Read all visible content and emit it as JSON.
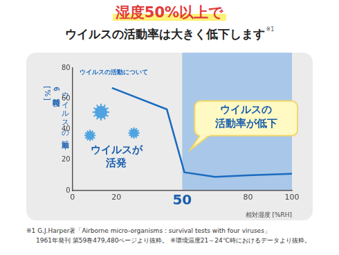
{
  "chart_data": {
    "type": "line",
    "title": "湿度50%以上で",
    "subtitle": "ウイルスの活動率は大きく低下します",
    "subtitle_mark": "※1",
    "x_label": "相対湿度 [%RH]",
    "y_label": [
      "ウイルスの活動率",
      "（6時間後）",
      "[%]"
    ],
    "x": [
      18,
      43,
      51,
      65,
      80,
      100
    ],
    "values": [
      67,
      53,
      12,
      9,
      10,
      11
    ],
    "color": "#1a6bbf",
    "xlim": [
      0,
      100
    ],
    "xticks": [
      0,
      20,
      50,
      80,
      100
    ],
    "ylim": [
      0,
      80
    ],
    "yticks": [
      0,
      20,
      40,
      60,
      80
    ],
    "grid": false,
    "shaded_x": [
      50,
      100
    ],
    "annotations": {
      "series_note": "ウイルスの活動について",
      "active": [
        "ウイルスが",
        "活発"
      ],
      "low": [
        "ウイルスの",
        "活動率が低下"
      ]
    },
    "footnotes": [
      "※1 G.J.Harper著「Airborne micro-organisms : survival tests with four viruses」",
      "1961年発刊 第59巻479,480ページより抜粋。 ※環境温度21～24℃時におけるデータより抜粋。"
    ]
  }
}
